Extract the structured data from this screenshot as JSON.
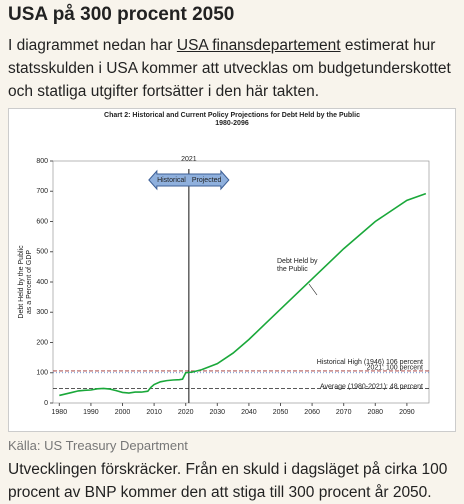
{
  "header": {
    "title": "USA på 300 procent 2050"
  },
  "intro": {
    "before": "I diagrammet nedan har ",
    "link": "USA finansdepartement",
    "after": " estimerat hur statsskulden i USA kommer att utvecklas om budgetunderskottet och statliga utgifter fortsätter i den här takten."
  },
  "chart_data": {
    "type": "line",
    "title": "Chart 2:  Historical and Current Policy Projections for Debt Held by the Public",
    "subtitle": "1980-2096",
    "y_label": [
      "Debt Held by the Public",
      "as a Percent of GDP"
    ],
    "x": [
      1980,
      1982,
      1984,
      1986,
      1988,
      1990,
      1992,
      1994,
      1996,
      1998,
      2000,
      2002,
      2004,
      2006,
      2008,
      2009,
      2010,
      2012,
      2014,
      2016,
      2018,
      2019,
      2020,
      2022,
      2025,
      2030,
      2035,
      2040,
      2045,
      2050,
      2060,
      2070,
      2080,
      2090,
      2096
    ],
    "series": [
      {
        "name": "Debt Held by the Public",
        "color": "#1aa83a",
        "values": [
          25,
          30,
          35,
          40,
          42,
          43,
          47,
          48,
          46,
          41,
          35,
          33,
          36,
          36,
          39,
          52,
          61,
          70,
          74,
          76,
          77,
          79,
          100,
          102,
          110,
          130,
          165,
          210,
          260,
          310,
          410,
          510,
          600,
          670,
          692
        ]
      }
    ],
    "xlim": [
      1978,
      2097
    ],
    "xticks": [
      1980,
      1990,
      2000,
      2010,
      2020,
      2030,
      2040,
      2050,
      2060,
      2070,
      2080,
      2090
    ],
    "ylim": [
      0,
      800
    ],
    "yticks": [
      0,
      100,
      200,
      300,
      400,
      500,
      600,
      700,
      800
    ],
    "divider": {
      "value": 2021,
      "label": "2021",
      "left": "Historical",
      "right": "Projected"
    },
    "reference_lines": [
      {
        "value": 106,
        "label": "Historical High (1946)  106 percent",
        "color": "#9b2d2d",
        "dash": "4 2"
      },
      {
        "value": 100,
        "label": "2021:  100 percent",
        "color": "#4a78c0",
        "dash": "1 2"
      },
      {
        "value": 48,
        "label": "Average (1980-2021):  48 percent",
        "color": "#222222",
        "dash": "4 2"
      }
    ]
  },
  "caption": "Källa: US Treasury Department",
  "conclusion": "Utvecklingen förskräcker. Från en skuld i dagsläget på cirka 100 procent av BNP kommer den att stiga till 300 procent år 2050."
}
